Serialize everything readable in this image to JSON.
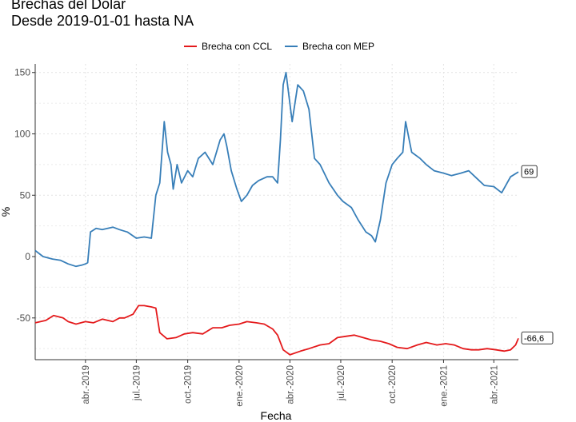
{
  "chart_data": {
    "type": "line",
    "title": "Brechas del Dólar",
    "subtitle": "Desde 2019-01-01 hasta NA",
    "xlabel": "Fecha",
    "ylabel": "%",
    "xlim": [
      "2019-01-01",
      "2021-05-15"
    ],
    "ylim": [
      -84,
      157
    ],
    "y_ticks": [
      -50,
      0,
      50,
      100,
      150
    ],
    "y_tick_labels": [
      "-50",
      "0",
      "50",
      "100",
      "150"
    ],
    "x_ticks": [
      "2019-04-01",
      "2019-07-01",
      "2019-10-01",
      "2020-01-01",
      "2020-04-01",
      "2020-07-01",
      "2020-10-01",
      "2021-01-01",
      "2021-04-01"
    ],
    "x_tick_labels": [
      "abr.-2019",
      "jul.-2019",
      "oct.-2019",
      "ene.-2020",
      "abr.-2020",
      "jul.-2020",
      "oct.-2020",
      "ene.-2021",
      "abr.-2021"
    ],
    "grid": true,
    "legend_position": "top",
    "series": [
      {
        "name": "Brecha con CCL",
        "color": "#e41a1c",
        "end_label": "-66,6",
        "x": [
          "2019-01-01",
          "2019-01-20",
          "2019-02-03",
          "2019-02-20",
          "2019-03-01",
          "2019-03-15",
          "2019-04-01",
          "2019-04-15",
          "2019-05-01",
          "2019-05-20",
          "2019-06-01",
          "2019-06-10",
          "2019-06-25",
          "2019-07-05",
          "2019-07-15",
          "2019-07-28",
          "2019-08-05",
          "2019-08-12",
          "2019-08-25",
          "2019-09-10",
          "2019-09-25",
          "2019-10-10",
          "2019-10-28",
          "2019-11-15",
          "2019-12-01",
          "2019-12-15",
          "2020-01-01",
          "2020-01-15",
          "2020-02-01",
          "2020-02-15",
          "2020-03-01",
          "2020-03-10",
          "2020-03-20",
          "2020-04-01",
          "2020-04-20",
          "2020-05-05",
          "2020-05-25",
          "2020-06-10",
          "2020-06-25",
          "2020-07-10",
          "2020-07-25",
          "2020-08-10",
          "2020-08-25",
          "2020-09-10",
          "2020-09-25",
          "2020-10-10",
          "2020-10-28",
          "2020-11-15",
          "2020-12-01",
          "2020-12-20",
          "2021-01-05",
          "2021-01-20",
          "2021-02-05",
          "2021-02-20",
          "2021-03-05",
          "2021-03-20",
          "2021-04-05",
          "2021-04-20",
          "2021-05-01",
          "2021-05-10",
          "2021-05-15"
        ],
        "values": [
          -54,
          -52,
          -48,
          -50,
          -53,
          -55,
          -53,
          -54,
          -51,
          -53,
          -50,
          -50,
          -47,
          -40,
          -40,
          -41,
          -42,
          -62,
          -67,
          -66,
          -63,
          -62,
          -63,
          -58,
          -58,
          -56,
          -55,
          -53,
          -54,
          -55,
          -59,
          -64,
          -76,
          -80,
          -77,
          -75,
          -72,
          -71,
          -66,
          -65,
          -64,
          -66,
          -68,
          -69,
          -71,
          -74,
          -75,
          -72,
          -70,
          -72,
          -71,
          -72,
          -75,
          -76,
          -76,
          -75,
          -76,
          -77,
          -76,
          -72,
          -66.6
        ]
      },
      {
        "name": "Brecha con MEP",
        "color": "#377eb8",
        "end_label": "69",
        "x": [
          "2019-01-01",
          "2019-01-15",
          "2019-02-01",
          "2019-02-15",
          "2019-03-01",
          "2019-03-15",
          "2019-03-25",
          "2019-04-01",
          "2019-04-05",
          "2019-04-10",
          "2019-04-20",
          "2019-05-01",
          "2019-05-20",
          "2019-06-01",
          "2019-06-15",
          "2019-07-01",
          "2019-07-15",
          "2019-07-28",
          "2019-08-05",
          "2019-08-12",
          "2019-08-20",
          "2019-08-26",
          "2019-09-01",
          "2019-09-05",
          "2019-09-12",
          "2019-09-20",
          "2019-10-01",
          "2019-10-10",
          "2019-10-20",
          "2019-11-01",
          "2019-11-15",
          "2019-11-28",
          "2019-12-05",
          "2019-12-10",
          "2019-12-18",
          "2019-12-28",
          "2020-01-05",
          "2020-01-15",
          "2020-01-25",
          "2020-02-05",
          "2020-02-20",
          "2020-03-01",
          "2020-03-10",
          "2020-03-15",
          "2020-03-20",
          "2020-03-25",
          "2020-04-05",
          "2020-04-15",
          "2020-04-25",
          "2020-05-05",
          "2020-05-15",
          "2020-05-25",
          "2020-06-10",
          "2020-06-25",
          "2020-07-05",
          "2020-07-20",
          "2020-08-01",
          "2020-08-15",
          "2020-08-25",
          "2020-09-01",
          "2020-09-10",
          "2020-09-20",
          "2020-10-01",
          "2020-10-10",
          "2020-10-20",
          "2020-10-25",
          "2020-11-05",
          "2020-11-20",
          "2020-12-01",
          "2020-12-15",
          "2021-01-01",
          "2021-01-15",
          "2021-02-01",
          "2021-02-15",
          "2021-03-01",
          "2021-03-15",
          "2021-04-01",
          "2021-04-15",
          "2021-05-01",
          "2021-05-15"
        ],
        "values": [
          5,
          0,
          -2,
          -3,
          -6,
          -8,
          -7,
          -6,
          -5,
          20,
          23,
          22,
          24,
          22,
          20,
          15,
          16,
          15,
          50,
          60,
          110,
          85,
          75,
          55,
          75,
          60,
          70,
          65,
          80,
          85,
          75,
          95,
          100,
          90,
          70,
          55,
          45,
          50,
          58,
          62,
          65,
          65,
          60,
          95,
          140,
          150,
          110,
          140,
          135,
          120,
          80,
          75,
          60,
          50,
          45,
          40,
          30,
          20,
          17,
          12,
          30,
          60,
          75,
          80,
          85,
          110,
          85,
          80,
          75,
          70,
          68,
          66,
          68,
          70,
          64,
          58,
          57,
          52,
          65,
          69
        ]
      }
    ]
  }
}
